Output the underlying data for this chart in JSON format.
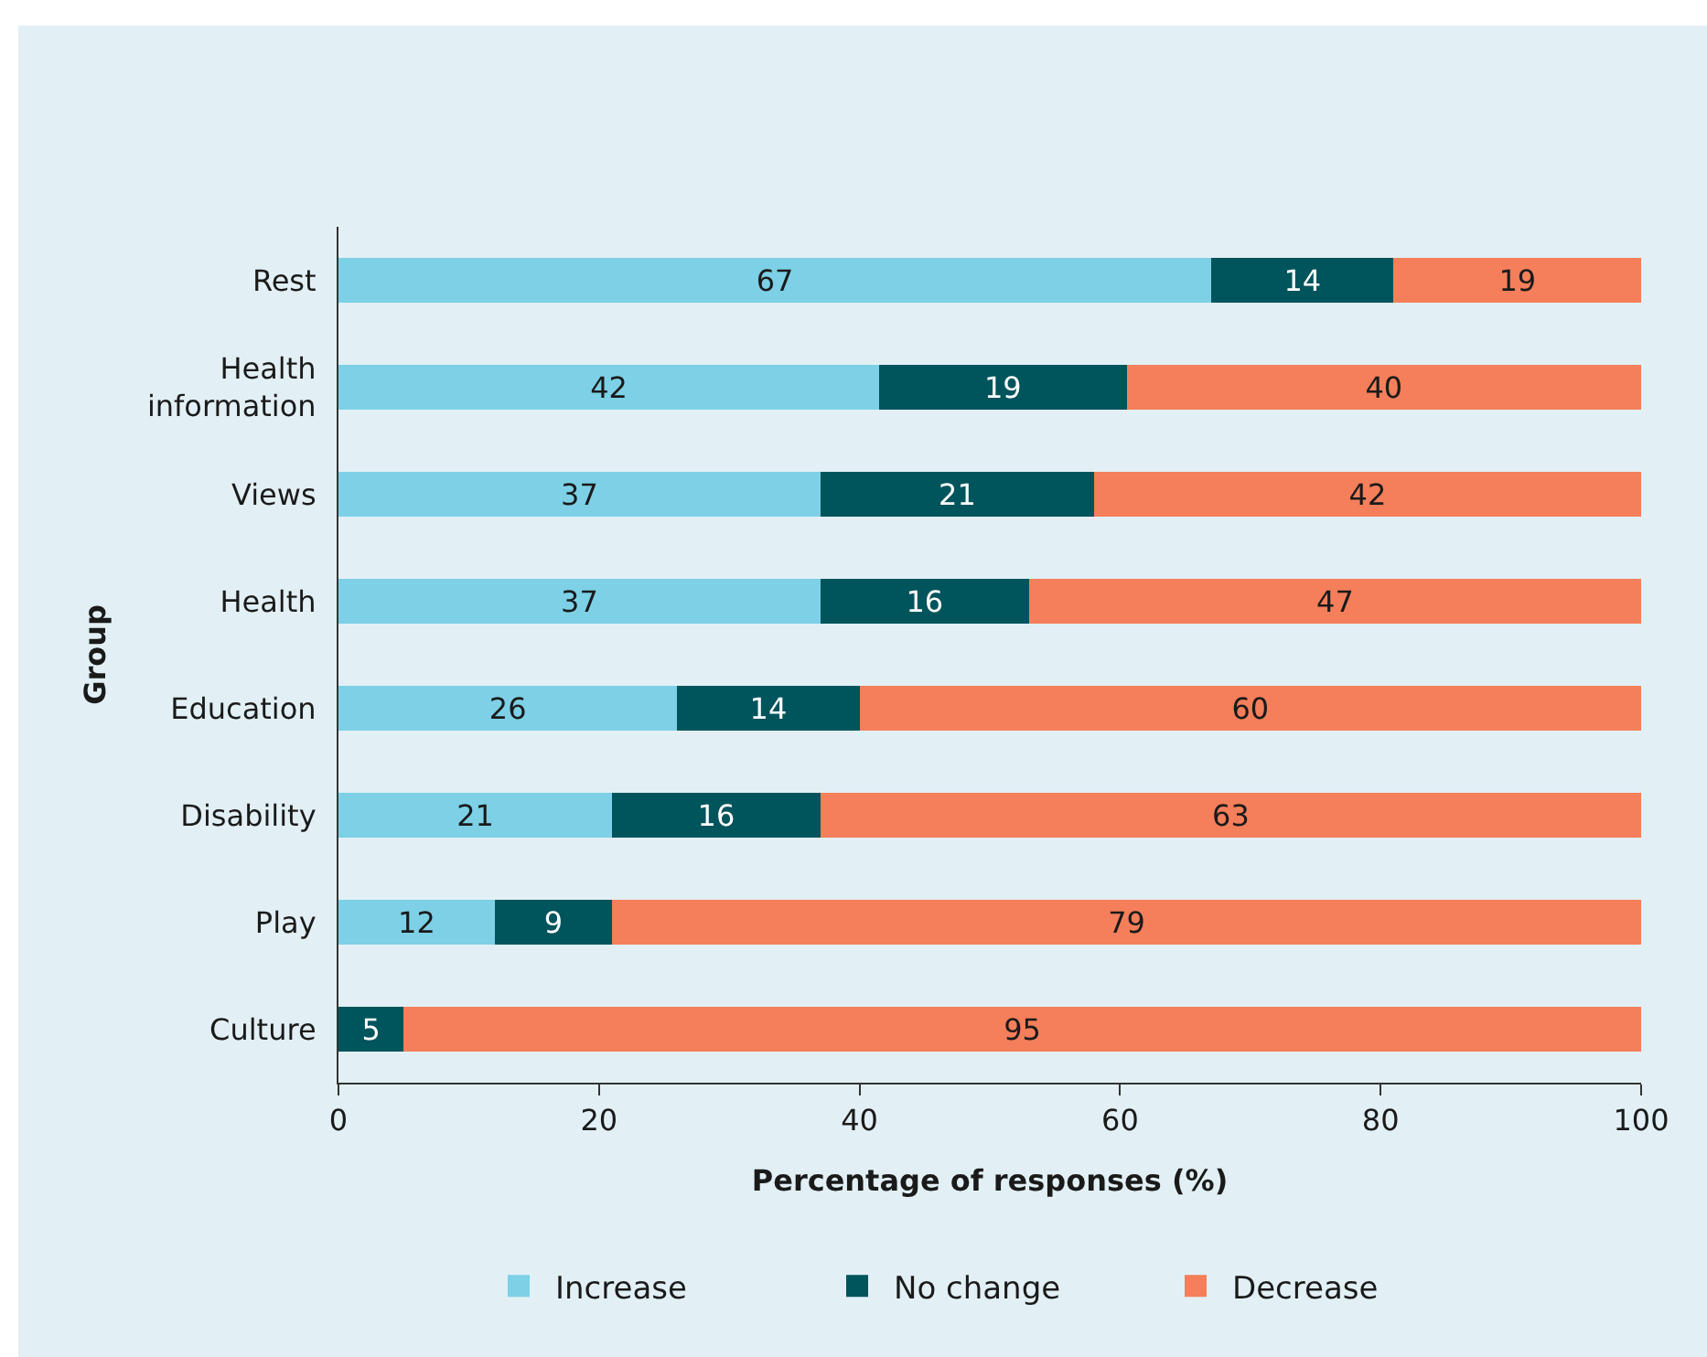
{
  "chart_data": {
    "type": "bar",
    "orientation": "horizontal",
    "stacked": true,
    "xlabel": "Percentage of responses (%)",
    "ylabel": "Group",
    "categories": [
      "Rest",
      "Health information",
      "Views",
      "Health",
      "Education",
      "Disability",
      "Play",
      "Culture"
    ],
    "series": [
      {
        "name": "Increase",
        "color": "#7dd0e6",
        "values": [
          67,
          41.5,
          37,
          37,
          26,
          21,
          12,
          null
        ],
        "value_labels": [
          "67",
          "42",
          "37",
          "37",
          "26",
          "21",
          "12",
          null
        ]
      },
      {
        "name": "No change",
        "color": "#00545c",
        "values": [
          14,
          19,
          21,
          16,
          14,
          16,
          9,
          5
        ],
        "value_labels": [
          "14",
          "19",
          "21",
          "16",
          "14",
          "16",
          "9",
          "5"
        ]
      },
      {
        "name": "Decrease",
        "color": "#f47f5a",
        "values": [
          19,
          39.5,
          42,
          47,
          60,
          63,
          79,
          95
        ],
        "value_labels": [
          "19",
          "40",
          "42",
          "47",
          "60",
          "63",
          "79",
          "95"
        ]
      }
    ],
    "xlim": [
      0,
      100
    ],
    "xticks": [
      0,
      20,
      40,
      60,
      80,
      100
    ],
    "grid": false,
    "legend": "bottom"
  }
}
